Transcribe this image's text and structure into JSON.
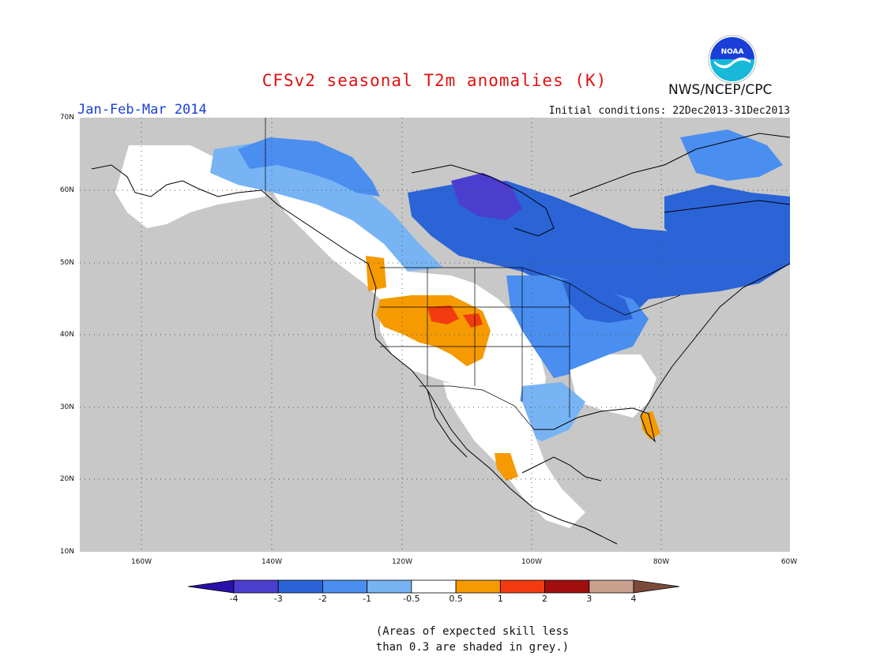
{
  "header": {
    "title": "CFSv2 seasonal T2m anomalies (K)",
    "period": "Jan-Feb-Mar 2014",
    "initial_conditions": "Initial conditions: 22Dec2013-31Dec2013",
    "agency": "NWS/NCEP/CPC",
    "logo_text": "NOAA"
  },
  "axes": {
    "lat_labels": [
      "70N",
      "60N",
      "50N",
      "40N",
      "30N",
      "20N",
      "10N"
    ],
    "lon_labels": [
      "160W",
      "140W",
      "120W",
      "100W",
      "80W",
      "60W"
    ]
  },
  "legend": {
    "bins": [
      "<-4",
      "-4 to -3",
      "-3 to -2",
      "-2 to -1",
      "-1 to -0.5",
      "-0.5 to 0.5",
      "0.5 to 1",
      "1 to 2",
      "2 to 3",
      "3 to 4",
      ">4"
    ],
    "colors": [
      "#2a10a8",
      "#4b3ecf",
      "#2a64d6",
      "#4a8ef0",
      "#78b4f4",
      "#ffffff",
      "#f59a00",
      "#f23c10",
      "#a30f10",
      "#c8a08e",
      "#7b4a3a"
    ],
    "tick_labels": [
      "-4",
      "-3",
      "-2",
      "-1",
      "-0.5",
      "0.5",
      "1",
      "2",
      "3",
      "4"
    ],
    "low_skill_color": "#c8c8c8"
  },
  "footnote": {
    "line1": "(Areas of expected skill less",
    "line2": "than 0.3 are shaded in grey.)"
  }
}
